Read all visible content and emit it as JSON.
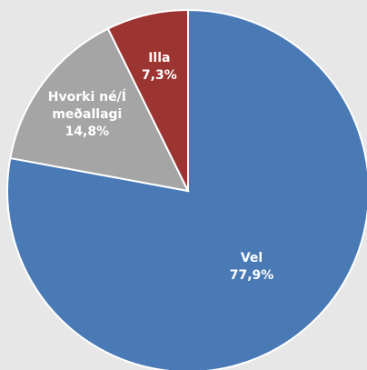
{
  "chart_data": {
    "type": "pie",
    "categories": [
      "Vel",
      "Hvorki né/Í meðallagi",
      "Illa"
    ],
    "values": [
      77.9,
      14.8,
      7.3
    ],
    "value_labels": [
      "77,9%",
      "14,8%",
      "7,3%"
    ],
    "colors": [
      "#4a7ab6",
      "#a5a5a5",
      "#9c3431"
    ],
    "start_angle": 0,
    "direction": "clockwise"
  }
}
